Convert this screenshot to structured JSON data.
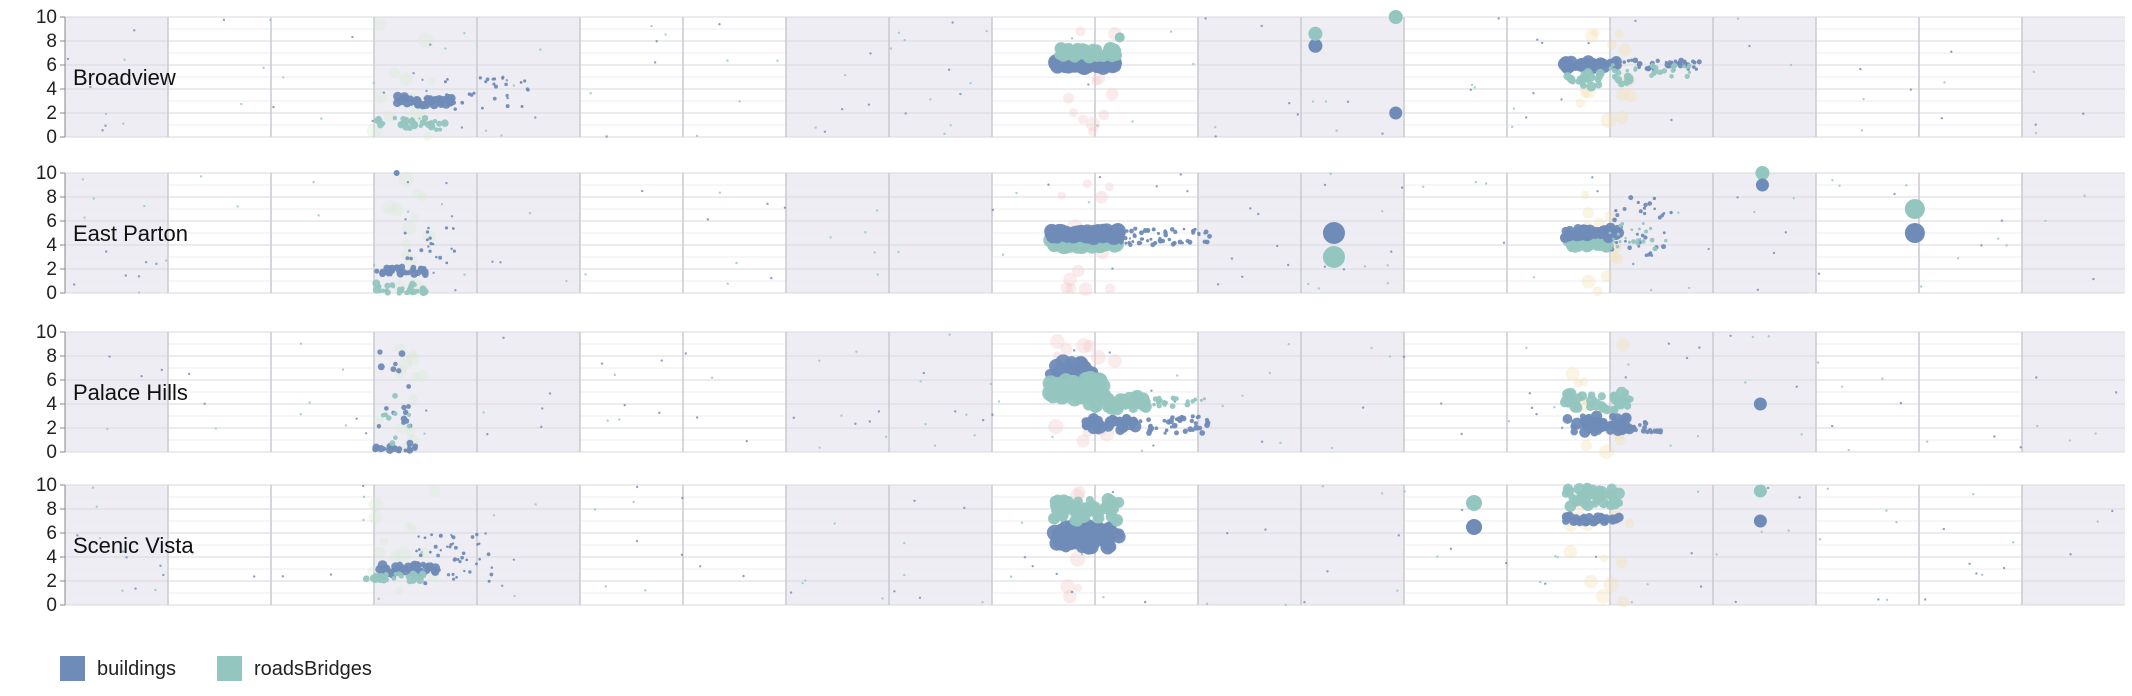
{
  "chart_data": {
    "type": "scatter",
    "ylim": [
      0,
      10
    ],
    "yticks": [
      0,
      2,
      4,
      6,
      8,
      10
    ],
    "grid": true,
    "legend_position": "bottom-left",
    "series_styles": [
      {
        "name": "buildings",
        "color": "#6f8bb7"
      },
      {
        "name": "roadsBridges",
        "color": "#93c6bf"
      }
    ],
    "faint_colors": [
      "#f2c9c9",
      "#f4dfb0",
      "#d7ead2"
    ],
    "panels": [
      {
        "title": "Broadview",
        "clusters": [
          {
            "series": "buildings",
            "x": [
              0.16,
              0.19
            ],
            "y": [
              2.6,
              3.4
            ],
            "n": 40,
            "r": [
              2,
              5
            ]
          },
          {
            "series": "buildings",
            "x": [
              0.18,
              0.225
            ],
            "y": [
              2.0,
              5.0
            ],
            "n": 30,
            "r": [
              1.2,
              2
            ]
          },
          {
            "series": "roadsBridges",
            "x": [
              0.15,
              0.185
            ],
            "y": [
              0.6,
              1.6
            ],
            "n": 30,
            "r": [
              2,
              4
            ]
          },
          {
            "series": "buildings",
            "x": [
              0.48,
              0.51
            ],
            "y": [
              5.8,
              6.3
            ],
            "n": 60,
            "r": [
              5,
              8
            ]
          },
          {
            "series": "roadsBridges",
            "x": [
              0.48,
              0.512
            ],
            "y": [
              6.7,
              7.4
            ],
            "n": 50,
            "r": [
              4,
              7
            ]
          },
          {
            "series": "buildings",
            "x": [
              0.728,
              0.755
            ],
            "y": [
              5.8,
              6.3
            ],
            "n": 30,
            "r": [
              4,
              7
            ]
          },
          {
            "series": "buildings",
            "x": [
              0.755,
              0.795
            ],
            "y": [
              5.6,
              6.4
            ],
            "n": 40,
            "r": [
              1.5,
              3
            ]
          },
          {
            "series": "roadsBridges",
            "x": [
              0.728,
              0.76
            ],
            "y": [
              4.2,
              5.4
            ],
            "n": 25,
            "r": [
              3,
              5
            ]
          },
          {
            "series": "roadsBridges",
            "x": [
              0.75,
              0.79
            ],
            "y": [
              5.0,
              6.0
            ],
            "n": 25,
            "r": [
              1.5,
              3
            ]
          }
        ],
        "points": [
          {
            "series": "buildings",
            "x": 0.607,
            "y": 7.6,
            "r": 7
          },
          {
            "series": "roadsBridges",
            "x": 0.607,
            "y": 8.6,
            "r": 7
          },
          {
            "series": "roadsBridges",
            "x": 0.646,
            "y": 10.0,
            "r": 7
          },
          {
            "series": "buildings",
            "x": 0.646,
            "y": 2.0,
            "r": 6.5
          },
          {
            "series": "roadsBridges",
            "x": 0.512,
            "y": 8.3,
            "r": 5
          }
        ]
      },
      {
        "title": "East Parton",
        "clusters": [
          {
            "series": "buildings",
            "x": [
              0.15,
              0.175
            ],
            "y": [
              1.5,
              2.2
            ],
            "n": 30,
            "r": [
              2,
              4
            ]
          },
          {
            "series": "buildings",
            "x": [
              0.165,
              0.19
            ],
            "y": [
              2.5,
              5.5
            ],
            "n": 20,
            "r": [
              1.2,
              2
            ]
          },
          {
            "series": "roadsBridges",
            "x": [
              0.15,
              0.175
            ],
            "y": [
              0.0,
              0.8
            ],
            "n": 30,
            "r": [
              2,
              4
            ]
          },
          {
            "series": "roadsBridges",
            "x": [
              0.478,
              0.512
            ],
            "y": [
              3.8,
              4.5
            ],
            "n": 60,
            "r": [
              5,
              8
            ]
          },
          {
            "series": "buildings",
            "x": [
              0.478,
              0.512
            ],
            "y": [
              4.6,
              5.2
            ],
            "n": 70,
            "r": [
              5,
              8
            ]
          },
          {
            "series": "buildings",
            "x": [
              0.512,
              0.556
            ],
            "y": [
              4.0,
              5.4
            ],
            "n": 60,
            "r": [
              1.2,
              2.5
            ]
          },
          {
            "series": "roadsBridges",
            "x": [
              0.728,
              0.75
            ],
            "y": [
              3.8,
              4.6
            ],
            "n": 40,
            "r": [
              4,
              6
            ]
          },
          {
            "series": "buildings",
            "x": [
              0.728,
              0.755
            ],
            "y": [
              4.6,
              5.4
            ],
            "n": 40,
            "r": [
              4,
              6
            ]
          },
          {
            "series": "buildings",
            "x": [
              0.75,
              0.78
            ],
            "y": [
              3.0,
              8.0
            ],
            "n": 35,
            "r": [
              1.2,
              2.5
            ]
          },
          {
            "series": "roadsBridges",
            "x": [
              0.75,
              0.78
            ],
            "y": [
              3.5,
              6.0
            ],
            "n": 25,
            "r": [
              1.2,
              2.5
            ]
          }
        ],
        "points": [
          {
            "series": "buildings",
            "x": 0.616,
            "y": 5.0,
            "r": 11
          },
          {
            "series": "roadsBridges",
            "x": 0.616,
            "y": 3.0,
            "r": 11
          },
          {
            "series": "roadsBridges",
            "x": 0.824,
            "y": 10.0,
            "r": 7
          },
          {
            "series": "buildings",
            "x": 0.824,
            "y": 9.0,
            "r": 6.5
          },
          {
            "series": "roadsBridges",
            "x": 0.898,
            "y": 7.0,
            "r": 10
          },
          {
            "series": "buildings",
            "x": 0.898,
            "y": 5.0,
            "r": 10
          },
          {
            "series": "buildings",
            "x": 0.161,
            "y": 10.0,
            "r": 3
          }
        ]
      },
      {
        "title": "Palace Hills",
        "clusters": [
          {
            "series": "buildings",
            "x": [
              0.15,
              0.172
            ],
            "y": [
              0.0,
              0.5
            ],
            "n": 20,
            "r": [
              2,
              4
            ]
          },
          {
            "series": "buildings",
            "x": [
              0.152,
              0.168
            ],
            "y": [
              0.5,
              8.5
            ],
            "n": 18,
            "r": [
              2,
              3.5
            ]
          },
          {
            "series": "roadsBridges",
            "x": [
              0.152,
              0.168
            ],
            "y": [
              0.3,
              5.5
            ],
            "n": 10,
            "r": [
              2,
              3
            ]
          },
          {
            "series": "buildings",
            "x": [
              0.478,
              0.5
            ],
            "y": [
              5.5,
              7.5
            ],
            "n": 40,
            "r": [
              5,
              8
            ]
          },
          {
            "series": "roadsBridges",
            "x": [
              0.478,
              0.505
            ],
            "y": [
              4.2,
              6.2
            ],
            "n": 40,
            "r": [
              6,
              9
            ]
          },
          {
            "series": "roadsBridges",
            "x": [
              0.495,
              0.525
            ],
            "y": [
              3.6,
              4.6
            ],
            "n": 45,
            "r": [
              4,
              7
            ]
          },
          {
            "series": "buildings",
            "x": [
              0.495,
              0.52
            ],
            "y": [
              1.8,
              2.8
            ],
            "n": 40,
            "r": [
              4,
              6
            ]
          },
          {
            "series": "buildings",
            "x": [
              0.515,
              0.555
            ],
            "y": [
              1.5,
              3.0
            ],
            "n": 40,
            "r": [
              1.5,
              3
            ]
          },
          {
            "series": "roadsBridges",
            "x": [
              0.52,
              0.555
            ],
            "y": [
              3.8,
              4.5
            ],
            "n": 30,
            "r": [
              1.5,
              3
            ]
          },
          {
            "series": "roadsBridges",
            "x": [
              0.728,
              0.76
            ],
            "y": [
              3.5,
              5.0
            ],
            "n": 40,
            "r": [
              3,
              6
            ]
          },
          {
            "series": "buildings",
            "x": [
              0.728,
              0.76
            ],
            "y": [
              1.5,
              3.0
            ],
            "n": 40,
            "r": [
              3,
              6
            ]
          },
          {
            "series": "buildings",
            "x": [
              0.755,
              0.775
            ],
            "y": [
              1.5,
              2.5
            ],
            "n": 20,
            "r": [
              1.5,
              3
            ]
          }
        ],
        "points": [
          {
            "series": "buildings",
            "x": 0.823,
            "y": 4.0,
            "r": 6.5
          }
        ]
      },
      {
        "title": "Scenic Vista",
        "clusters": [
          {
            "series": "buildings",
            "x": [
              0.15,
              0.18
            ],
            "y": [
              2.6,
              3.4
            ],
            "n": 45,
            "r": [
              2,
              5
            ]
          },
          {
            "series": "buildings",
            "x": [
              0.17,
              0.21
            ],
            "y": [
              1.8,
              6.0
            ],
            "n": 45,
            "r": [
              1.2,
              2
            ]
          },
          {
            "series": "roadsBridges",
            "x": [
              0.145,
              0.175
            ],
            "y": [
              2.0,
              2.6
            ],
            "n": 30,
            "r": [
              2,
              4
            ]
          },
          {
            "series": "buildings",
            "x": [
              0.48,
              0.512
            ],
            "y": [
              4.8,
              6.6
            ],
            "n": 70,
            "r": [
              5,
              8
            ]
          },
          {
            "series": "roadsBridges",
            "x": [
              0.48,
              0.512
            ],
            "y": [
              7.0,
              8.8
            ],
            "n": 60,
            "r": [
              4,
              7
            ]
          },
          {
            "series": "roadsBridges",
            "x": [
              0.728,
              0.755
            ],
            "y": [
              8.2,
              9.8
            ],
            "n": 40,
            "r": [
              4,
              6
            ]
          },
          {
            "series": "buildings",
            "x": [
              0.728,
              0.755
            ],
            "y": [
              6.8,
              7.4
            ],
            "n": 40,
            "r": [
              3,
              5
            ]
          }
        ],
        "points": [
          {
            "series": "roadsBridges",
            "x": 0.684,
            "y": 8.5,
            "r": 8
          },
          {
            "series": "buildings",
            "x": 0.684,
            "y": 6.5,
            "r": 8
          },
          {
            "series": "roadsBridges",
            "x": 0.823,
            "y": 9.5,
            "r": 6.5
          },
          {
            "series": "buildings",
            "x": 0.823,
            "y": 7.0,
            "r": 6.5
          }
        ]
      }
    ],
    "legend": [
      {
        "label": "buildings",
        "color": "#6f8bb7"
      },
      {
        "label": "roadsBridges",
        "color": "#93c6bf"
      }
    ]
  }
}
